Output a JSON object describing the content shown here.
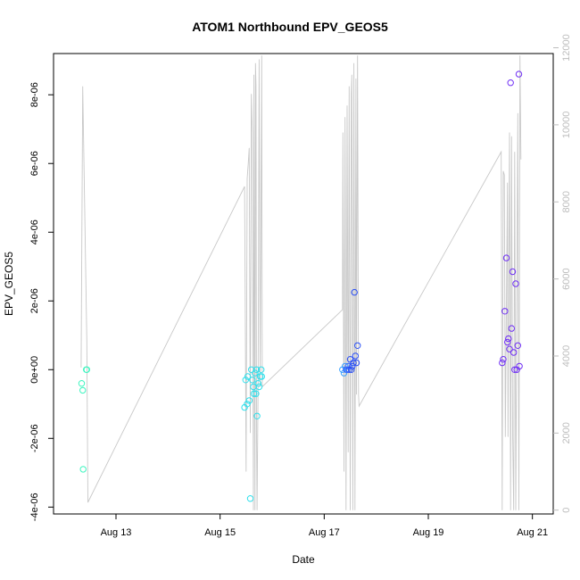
{
  "chart_data": {
    "type": "scatter",
    "title": "ATOM1 Northbound EPV_GEOS5",
    "xlabel": "Date",
    "ylabel": "EPV_GEOS5",
    "x_ticks": [
      "Aug 13",
      "Aug 15",
      "Aug 17",
      "Aug 19",
      "Aug 21"
    ],
    "x_tick_values": [
      13,
      15,
      17,
      19,
      21
    ],
    "xlim": [
      11.8,
      21.4
    ],
    "ylim": [
      -4.2e-06,
      9.2e-06
    ],
    "y_ticks": [
      -4e-06,
      -2e-06,
      0,
      2e-06,
      4e-06,
      6e-06,
      8e-06
    ],
    "y_tick_labels": [
      "-4e-06",
      "-2e-06",
      "0e+00",
      "2e-06",
      "4e-06",
      "6e-06",
      "8e-06"
    ],
    "y2lim": [
      -100,
      11850
    ],
    "y2_ticks": [
      0,
      2000,
      4000,
      6000,
      8000,
      10000,
      12000
    ],
    "y2_tick_labels": [
      "0",
      "2000",
      "4000",
      "6000",
      "8000",
      "10000",
      "12000"
    ],
    "grid": false,
    "legend": "none",
    "points": [
      {
        "x": 12.34,
        "y": -4e-07,
        "color": "#3ff5c0"
      },
      {
        "x": 12.36,
        "y": -6e-07,
        "color": "#3ff5c0"
      },
      {
        "x": 12.37,
        "y": -2.9e-06,
        "color": "#3ff5c0"
      },
      {
        "x": 12.43,
        "y": 0,
        "color": "#3ff5c0"
      },
      {
        "x": 12.44,
        "y": 0,
        "color": "#3ff5c0"
      },
      {
        "x": 15.47,
        "y": -1.1e-06,
        "color": "#2ee0ec"
      },
      {
        "x": 15.49,
        "y": -3e-07,
        "color": "#2ee0ec"
      },
      {
        "x": 15.52,
        "y": -1e-06,
        "color": "#2ee0ec"
      },
      {
        "x": 15.53,
        "y": -2e-07,
        "color": "#2ee0ec"
      },
      {
        "x": 15.56,
        "y": -9e-07,
        "color": "#2ee0ec"
      },
      {
        "x": 15.58,
        "y": -3.75e-06,
        "color": "#2ee0ec"
      },
      {
        "x": 15.6,
        "y": 0,
        "color": "#2ee0ec"
      },
      {
        "x": 15.62,
        "y": -3e-07,
        "color": "#2ee0ec"
      },
      {
        "x": 15.64,
        "y": -5e-07,
        "color": "#2ee0ec"
      },
      {
        "x": 15.65,
        "y": -7e-07,
        "color": "#2ee0ec"
      },
      {
        "x": 15.67,
        "y": -1e-07,
        "color": "#2ee0ec"
      },
      {
        "x": 15.69,
        "y": -7e-07,
        "color": "#2ee0ec"
      },
      {
        "x": 15.7,
        "y": 0,
        "color": "#2ee0ec"
      },
      {
        "x": 15.71,
        "y": -1.35e-06,
        "color": "#2ee0ec"
      },
      {
        "x": 15.73,
        "y": -4e-07,
        "color": "#2ee0ec"
      },
      {
        "x": 15.75,
        "y": -5e-07,
        "color": "#2ee0ec"
      },
      {
        "x": 15.77,
        "y": -2e-07,
        "color": "#2ee0ec"
      },
      {
        "x": 15.79,
        "y": 0,
        "color": "#2ee0ec"
      },
      {
        "x": 15.8,
        "y": -2e-07,
        "color": "#2ee0ec"
      },
      {
        "x": 17.35,
        "y": 0,
        "color": "#3aa0ff"
      },
      {
        "x": 17.38,
        "y": -1e-07,
        "color": "#3aa0ff"
      },
      {
        "x": 17.4,
        "y": 1e-07,
        "color": "#3aa0ff"
      },
      {
        "x": 17.42,
        "y": 0,
        "color": "#3a6fff"
      },
      {
        "x": 17.44,
        "y": 0,
        "color": "#3a6fff"
      },
      {
        "x": 17.46,
        "y": 1e-07,
        "color": "#3a6fff"
      },
      {
        "x": 17.48,
        "y": 0,
        "color": "#2a4ff5"
      },
      {
        "x": 17.5,
        "y": 3e-07,
        "color": "#2a4ff5"
      },
      {
        "x": 17.52,
        "y": 0,
        "color": "#2a4ff5"
      },
      {
        "x": 17.54,
        "y": 1e-07,
        "color": "#2a4ff5"
      },
      {
        "x": 17.56,
        "y": 2e-07,
        "color": "#2a4ff5"
      },
      {
        "x": 17.58,
        "y": 2.25e-06,
        "color": "#2a4ff5"
      },
      {
        "x": 17.6,
        "y": 4e-07,
        "color": "#2a4ff5"
      },
      {
        "x": 17.62,
        "y": 2e-07,
        "color": "#2a4ff5"
      },
      {
        "x": 17.64,
        "y": 7e-07,
        "color": "#2a4ff5"
      },
      {
        "x": 20.42,
        "y": 2e-07,
        "color": "#6f2ef5"
      },
      {
        "x": 20.44,
        "y": 3e-07,
        "color": "#6f2ef5"
      },
      {
        "x": 20.47,
        "y": 1.7e-06,
        "color": "#6f2ef5"
      },
      {
        "x": 20.5,
        "y": 3.25e-06,
        "color": "#6f2ef5"
      },
      {
        "x": 20.52,
        "y": 8e-07,
        "color": "#6f2ef5"
      },
      {
        "x": 20.54,
        "y": 9e-07,
        "color": "#6f2ef5"
      },
      {
        "x": 20.56,
        "y": 6e-07,
        "color": "#6f2ef5"
      },
      {
        "x": 20.58,
        "y": 8.35e-06,
        "color": "#6f2ef5"
      },
      {
        "x": 20.6,
        "y": 1.2e-06,
        "color": "#6f2ef5"
      },
      {
        "x": 20.62,
        "y": 2.85e-06,
        "color": "#6f2ef5"
      },
      {
        "x": 20.64,
        "y": 5e-07,
        "color": "#6f2ef5"
      },
      {
        "x": 20.66,
        "y": 0,
        "color": "#6f2ef5"
      },
      {
        "x": 20.68,
        "y": 2.5e-06,
        "color": "#6f2ef5"
      },
      {
        "x": 20.7,
        "y": 0,
        "color": "#6f2ef5"
      },
      {
        "x": 20.72,
        "y": 7e-07,
        "color": "#6f2ef5"
      },
      {
        "x": 20.74,
        "y": 8.6e-06,
        "color": "#6f2ef5"
      },
      {
        "x": 20.75,
        "y": 1e-07,
        "color": "#6f2ef5"
      }
    ],
    "secondary_series": {
      "axis": "right",
      "color": "#c8c8c8",
      "x": [
        12.33,
        12.36,
        12.44,
        12.46,
        15.47,
        15.48,
        15.5,
        15.52,
        15.54,
        15.56,
        15.58,
        15.6,
        15.62,
        15.64,
        15.65,
        15.67,
        15.68,
        15.69,
        15.7,
        15.71,
        15.73,
        15.75,
        15.77,
        15.8,
        15.81,
        17.35,
        17.36,
        17.38,
        17.4,
        17.42,
        17.44,
        17.46,
        17.48,
        17.5,
        17.52,
        17.53,
        17.55,
        17.57,
        17.59,
        17.61,
        17.62,
        17.64,
        17.66,
        17.67,
        20.4,
        20.42,
        20.44,
        20.46,
        20.48,
        20.52,
        20.53,
        20.56,
        20.58,
        20.6,
        20.62,
        20.64,
        20.66,
        20.68,
        20.72,
        20.74,
        20.76,
        20.78
      ],
      "y": [
        3700,
        11000,
        4400,
        200,
        8400,
        6000,
        1000,
        8600,
        9000,
        9400,
        2000,
        10800,
        9800,
        0,
        11300,
        0,
        11600,
        11000,
        2000,
        0,
        3400,
        11700,
        3200,
        11800,
        3200,
        5200,
        9800,
        1000,
        10200,
        0,
        10500,
        1500,
        11000,
        0,
        10800,
        11300,
        0,
        11600,
        0,
        11200,
        3000,
        11800,
        3000,
        2700,
        9300,
        0,
        8800,
        8700,
        1900,
        8500,
        1900,
        9800,
        0,
        9700,
        2000,
        0,
        9300,
        0,
        10300,
        0,
        11800,
        9100
      ]
    }
  }
}
